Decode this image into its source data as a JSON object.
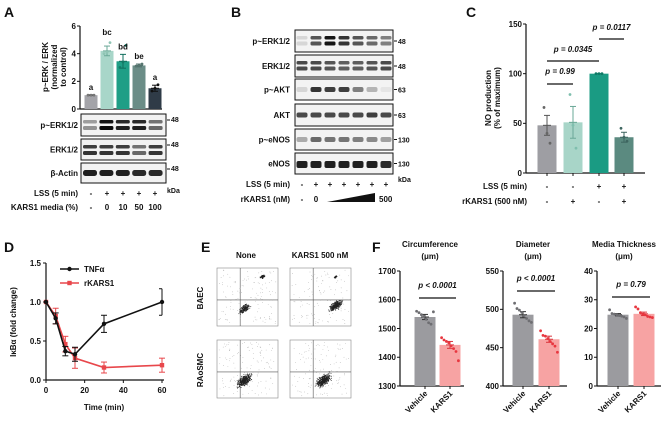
{
  "panel_labels": {
    "A": "A",
    "B": "B",
    "C": "C",
    "D": "D",
    "E": "E",
    "F": "F"
  },
  "colors": {
    "axis": "#111111",
    "a_bars": [
      "#a4a4a9",
      "#a8d6c9",
      "#1f9e86",
      "#6b8d87",
      "#2f3b47"
    ],
    "c_bars": [
      "#9e9ea3",
      "#a8d5c8",
      "#1a9b83",
      "#5b8a80"
    ],
    "f_vehicle": "#9b9b9f",
    "f_kars1": "#f7a3a3",
    "f_kars1_points": "#e8363f",
    "f_vehicle_points": "#6e6e72",
    "d_tnf": "#111111",
    "d_rkars1": "#e8474b"
  },
  "panelA": {
    "blots": [
      {
        "label": "p~ERK1/2",
        "kda": "48"
      },
      {
        "label": "ERK1/2",
        "kda": "48"
      },
      {
        "label": "β-Actin",
        "kda": "48"
      }
    ],
    "kda_label": "kDa",
    "conditions": [
      {
        "label": "LSS (5 min)",
        "values": [
          "-",
          "+",
          "+",
          "+",
          "+"
        ]
      },
      {
        "label": "KARS1 media (%)",
        "values": [
          "-",
          "0",
          "10",
          "50",
          "100"
        ]
      }
    ]
  },
  "panelB": {
    "blots": [
      {
        "label": "p~ERK1/2",
        "kda": "48"
      },
      {
        "label": "ERK1/2",
        "kda": "48"
      },
      {
        "label": "p~AKT",
        "kda": "63"
      },
      {
        "label": "AKT",
        "kda": "63"
      },
      {
        "label": "p~eNOS",
        "kda": "130"
      },
      {
        "label": "eNOS",
        "kda": "130"
      }
    ],
    "kda_label": "kDa",
    "lss": {
      "label": "LSS (5 min)",
      "values": [
        "-",
        "+",
        "+",
        "+",
        "+",
        "+",
        "+"
      ]
    },
    "rkars1": {
      "label": "rKARS1 (nM)",
      "first": "-",
      "low": "0",
      "high": "500"
    }
  },
  "panelE": {
    "columns": [
      "None",
      "KARS1 500 nM"
    ],
    "rows": [
      "BAEC",
      "RAoSMC"
    ]
  },
  "chart_data": [
    {
      "panel": "A",
      "type": "bar",
      "ylabel": [
        "p~ERK / ERK",
        "(normalized",
        "to control)"
      ],
      "ylim": [
        0,
        6
      ],
      "yticks": [
        "0",
        "2",
        "4",
        "6"
      ],
      "values": [
        1.0,
        4.2,
        3.45,
        3.15,
        1.5
      ],
      "sem": [
        0.03,
        0.35,
        0.5,
        0.1,
        0.22
      ],
      "points": [
        [
          1,
          1,
          1
        ],
        [
          4.0,
          4.1,
          4.8
        ],
        [
          3.0,
          3.4,
          4.6
        ],
        [
          3.1,
          3.15,
          3.25
        ],
        [
          1.3,
          1.5,
          1.75
        ]
      ],
      "letters": [
        "a",
        "bc",
        "bd",
        "be",
        "a"
      ]
    },
    {
      "panel": "C",
      "type": "bar",
      "ylabel": [
        "NO production",
        "(% of maximum)"
      ],
      "ylim": [
        0,
        150
      ],
      "yticks": [
        "0",
        "50",
        "100",
        "150"
      ],
      "values": [
        48,
        51,
        100,
        36
      ],
      "sem": [
        10,
        16,
        0,
        5
      ],
      "points": [
        [
          66,
          40,
          30
        ],
        [
          79,
          48,
          25
        ],
        [
          100,
          100,
          100
        ],
        [
          45,
          36,
          32
        ]
      ],
      "comparisons": [
        {
          "groups": [
            1,
            2
          ],
          "label": "p = 0.99"
        },
        {
          "groups": [
            1,
            3
          ],
          "label": "p = 0.0345"
        },
        {
          "groups": [
            3,
            4
          ],
          "label": "p = 0.0117"
        }
      ],
      "conditions": [
        {
          "label": "LSS (5 min)",
          "values": [
            "-",
            "-",
            "+",
            "+"
          ]
        },
        {
          "label": "rKARS1 (500 nM)",
          "values": [
            "-",
            "+",
            "-",
            "+"
          ]
        }
      ]
    },
    {
      "panel": "D",
      "type": "line",
      "xlabel": "Time (min)",
      "ylabel": "IκBα (fold change)",
      "xlim": [
        0,
        60
      ],
      "ylim": [
        0,
        1.5
      ],
      "xticks": [
        "0",
        "20",
        "40",
        "60"
      ],
      "yticks": [
        "0.0",
        "0.5",
        "1.0",
        "1.5"
      ],
      "legend": "top-left",
      "x": [
        0,
        5,
        10,
        15,
        30,
        60
      ],
      "series": [
        {
          "name": "TNFα",
          "y": [
            1.0,
            0.79,
            0.37,
            0.33,
            0.72,
            1.0
          ],
          "err": [
            0,
            0.07,
            0.06,
            0.09,
            0.11,
            0.17
          ]
        },
        {
          "name": "rKARS1",
          "y": [
            1.0,
            0.82,
            0.46,
            0.28,
            0.16,
            0.19
          ],
          "err": [
            0,
            0.1,
            0.1,
            0.13,
            0.07,
            0.09
          ]
        }
      ]
    },
    {
      "panel": "F",
      "type": "bar",
      "title": [
        "Circumference",
        "(μm)"
      ],
      "ylim": [
        1300,
        1700
      ],
      "yticks": [
        "1300",
        "1400",
        "1500",
        "1600",
        "1700"
      ],
      "categories": [
        "Vehicle",
        "KARS1"
      ],
      "values": [
        1540,
        1443
      ],
      "sem": [
        9,
        12
      ],
      "points": [
        [
          1560,
          1555,
          1548,
          1542,
          1532,
          1520,
          1515,
          1558
        ],
        [
          1468,
          1460,
          1455,
          1450,
          1440,
          1430,
          1420,
          1388
        ]
      ],
      "comparison": "p < 0.0001"
    },
    {
      "panel": "F",
      "type": "bar",
      "title": [
        "Diameter",
        "(μm)"
      ],
      "ylim": [
        400,
        550
      ],
      "yticks": [
        "400",
        "450",
        "500",
        "550"
      ],
      "categories": [
        "Vehicle",
        "KARS1"
      ],
      "values": [
        493,
        461
      ],
      "sem": [
        4,
        4
      ],
      "points": [
        [
          508,
          501,
          499,
          496,
          492,
          488,
          485,
          483
        ],
        [
          472,
          466,
          465,
          462,
          458,
          455,
          452,
          444
        ]
      ],
      "comparison": "p < 0.0001"
    },
    {
      "panel": "F",
      "type": "bar",
      "title": [
        "Media Thickness",
        "(μm)"
      ],
      "ylim": [
        0,
        40
      ],
      "yticks": [
        "0",
        "10",
        "20",
        "30",
        "40"
      ],
      "categories": [
        "Vehicle",
        "KARS1"
      ],
      "values": [
        24.8,
        25.1
      ],
      "sem": [
        0.4,
        0.6
      ],
      "points": [
        [
          26.5,
          25.2,
          25,
          24.8,
          24.5,
          24.3,
          24,
          23.5
        ],
        [
          27.5,
          26.8,
          25.5,
          25,
          24.8,
          24.2,
          24,
          23.8
        ]
      ],
      "comparison": "p = 0.79"
    }
  ]
}
